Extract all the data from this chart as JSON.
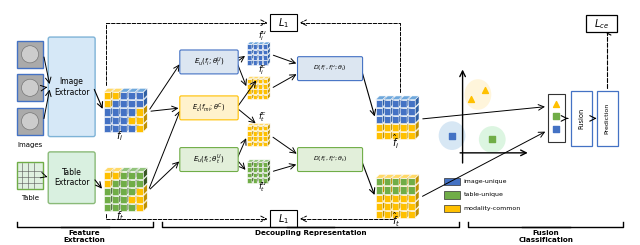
{
  "bg_color": "#ffffff",
  "colors": {
    "blue_front": "#4472c4",
    "blue_top": "#6fa8dc",
    "blue_side": "#2e5fa3",
    "green_front": "#70ad47",
    "green_top": "#93c47d",
    "green_side": "#375623",
    "orange_front": "#ffc000",
    "orange_top": "#ffd966",
    "orange_side": "#bf9000",
    "white": "#ffffff",
    "black": "#000000"
  },
  "legend_items": [
    {
      "label": "image-unique",
      "color": "#4472c4"
    },
    {
      "label": "table-unique",
      "color": "#70ad47"
    },
    {
      "label": "modality-common",
      "color": "#ffc000"
    }
  ]
}
